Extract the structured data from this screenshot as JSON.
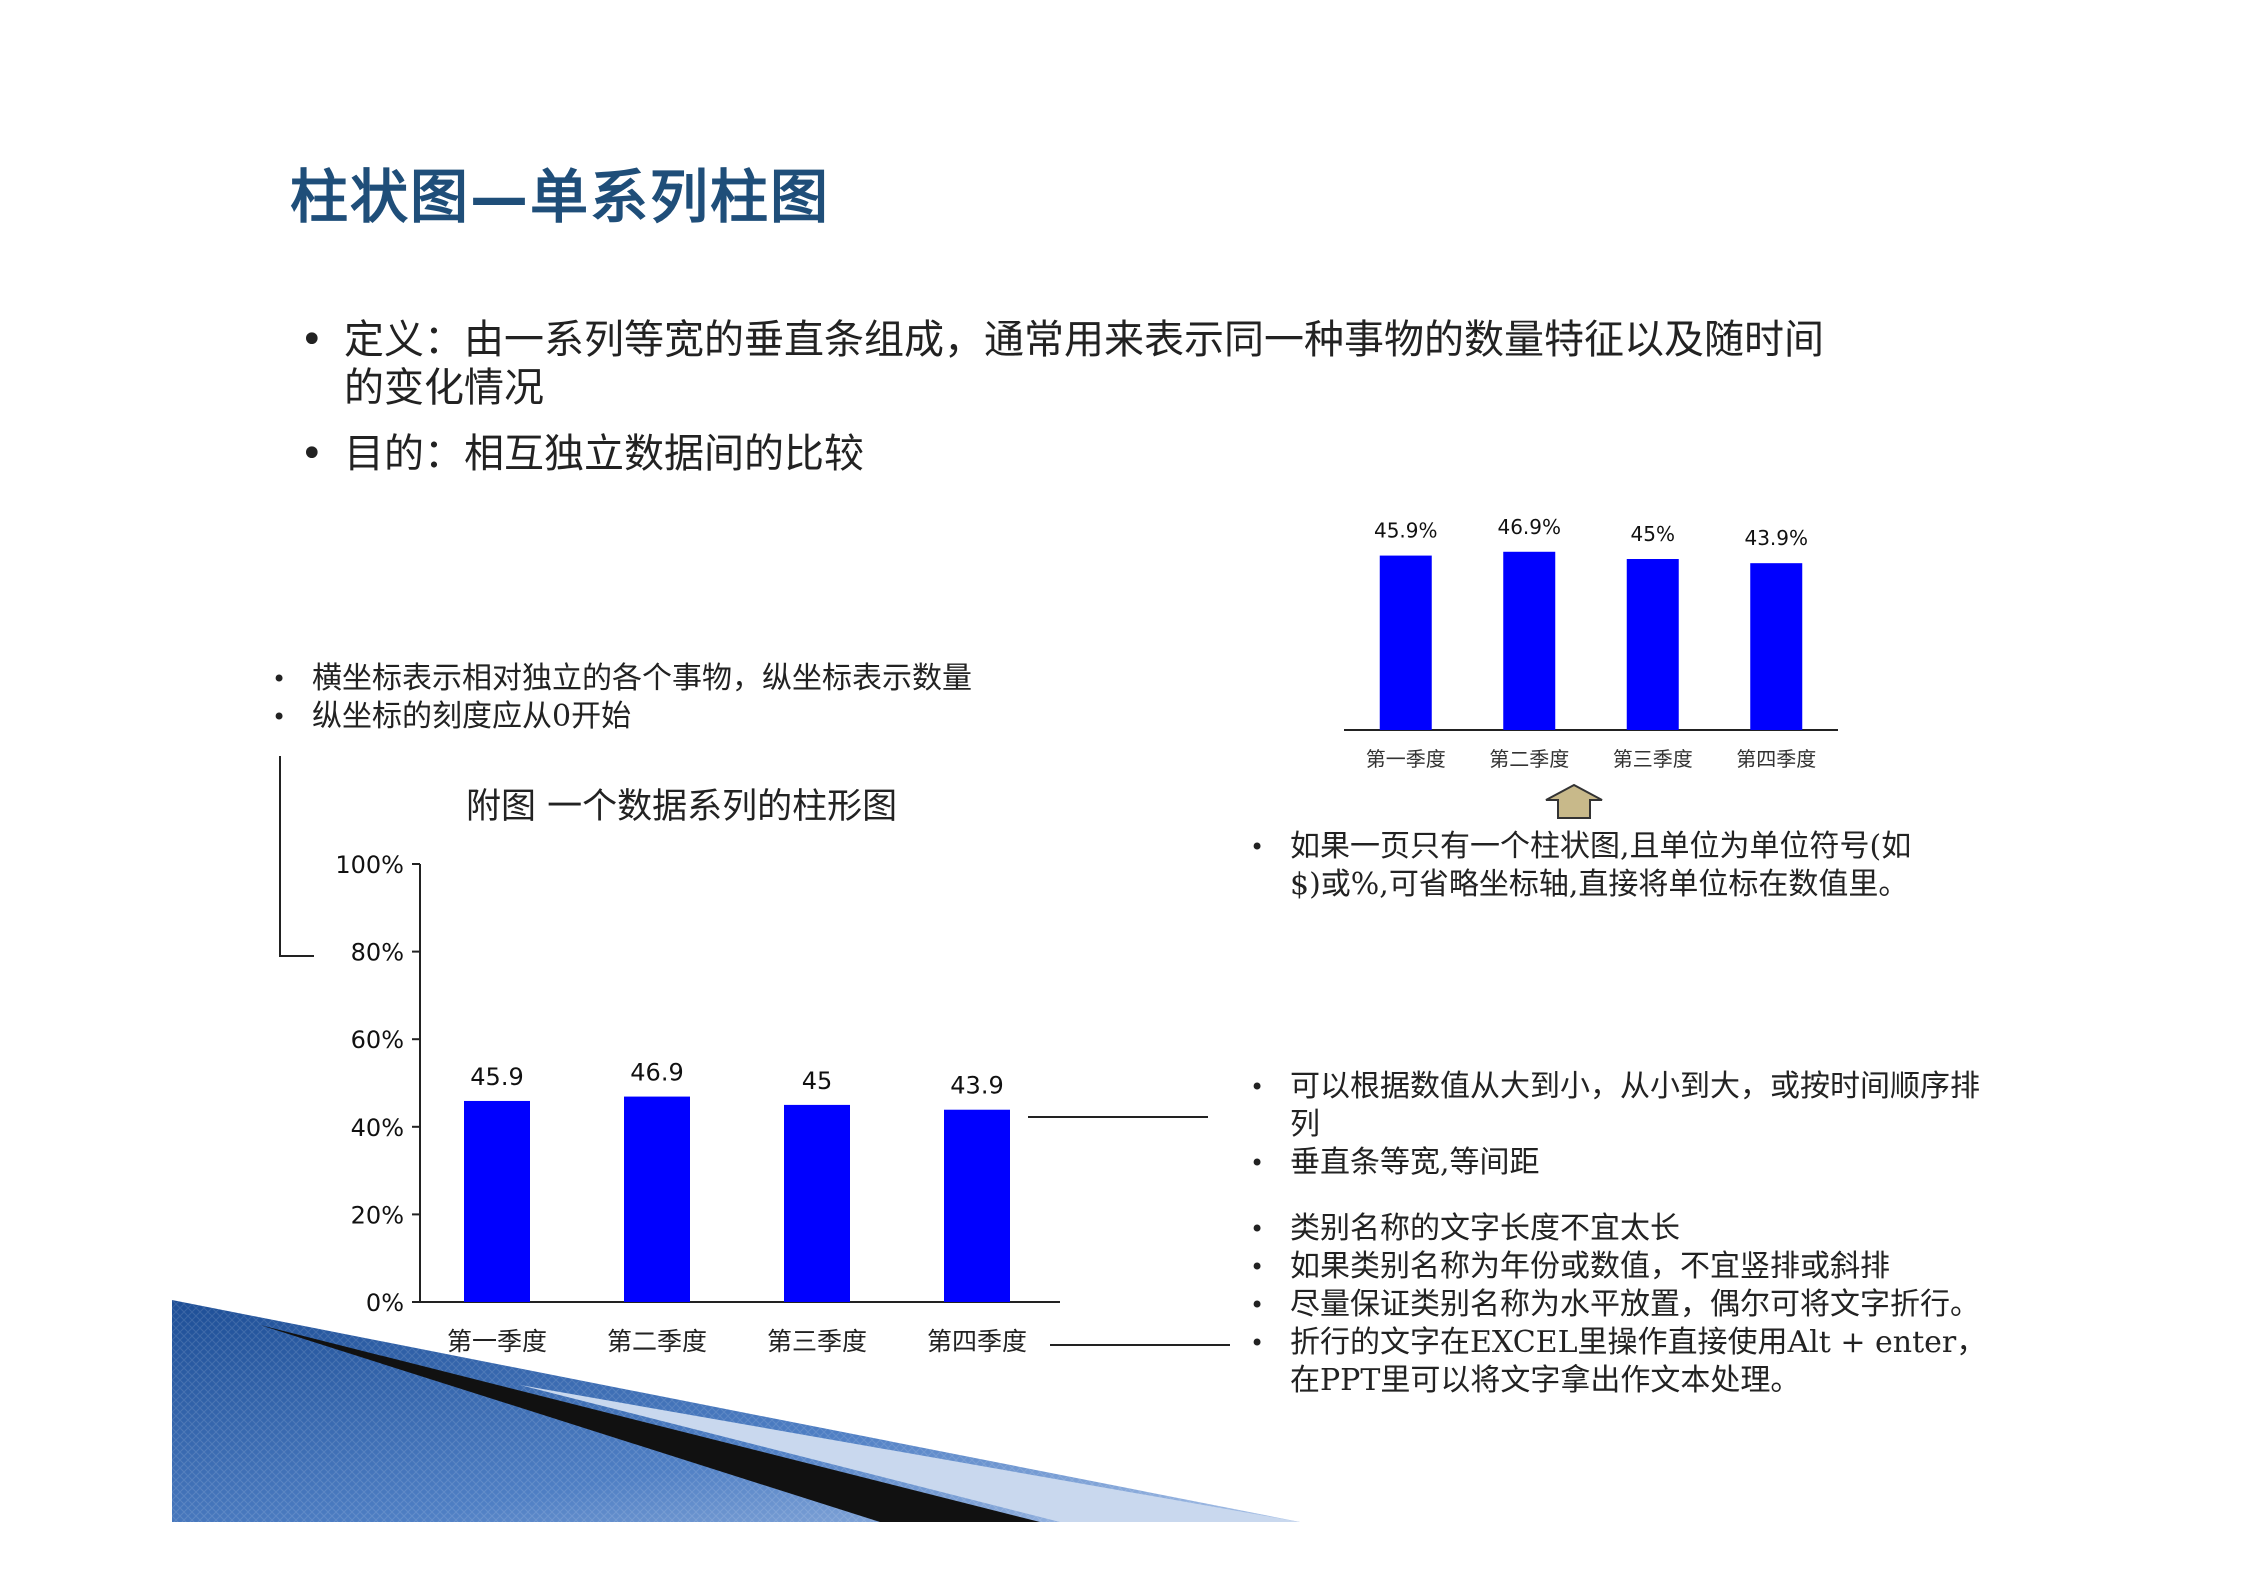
{
  "title": "柱状图—单系列柱图",
  "main_bullets": [
    "定义：由一系列等宽的垂直条组成，通常用来表示同一种事物的数量特征以及随时间的变化情况",
    "目的：相互独立数据间的比较"
  ],
  "left_notes": [
    "横坐标表示相对独立的各个事物，纵坐标表示数量",
    "纵坐标的刻度应从0开始"
  ],
  "right_note_1": "如果一页只有一个柱状图,且单位为单位符号(如$)或%,可省略坐标轴,直接将单位标在数值里。",
  "right_notes_2": [
    "可以根据数值从大到小，从小到大，或按时间顺序排列",
    "垂直条等宽,等间距"
  ],
  "right_notes_3": [
    "类别名称的文字长度不宜太长",
    "如果类别名称为年份或数值，不宜竖排或斜排",
    "尽量保证类别名称为水平放置，偶尔可将文字折行。",
    "折行的文字在EXCEL里操作直接使用Alt + enter，在PPT里可以将文字拿出作文本处理。"
  ],
  "colors": {
    "bar": "#0000ff",
    "title": "#1f4e79",
    "arrow": "#c8b98a"
  },
  "chart_data": [
    {
      "type": "bar",
      "title": "附图  一个数据系列的柱形图",
      "categories": [
        "第一季度",
        "第二季度",
        "第三季度",
        "第四季度"
      ],
      "values": [
        45.9,
        46.9,
        45,
        43.9
      ],
      "value_labels": [
        "45.9",
        "46.9",
        "45",
        "43.9"
      ],
      "y_ticks": [
        "0%",
        "20%",
        "40%",
        "60%",
        "80%",
        "100%"
      ],
      "ylim": [
        0,
        100
      ],
      "grid": false
    },
    {
      "type": "bar",
      "title": "",
      "categories": [
        "第一季度",
        "第二季度",
        "第三季度",
        "第四季度"
      ],
      "values": [
        45.9,
        46.9,
        45,
        43.9
      ],
      "value_labels": [
        "45.9%",
        "46.9%",
        "45%",
        "43.9%"
      ],
      "y_axis": "none",
      "grid": false
    }
  ]
}
